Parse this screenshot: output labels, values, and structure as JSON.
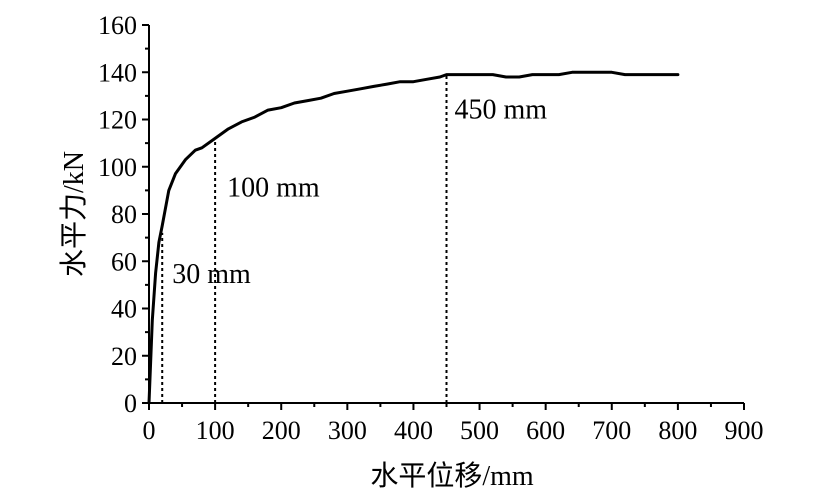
{
  "chart_data": {
    "type": "line",
    "xlabel": "水平位移/mm",
    "ylabel": "水平力/kN",
    "xlim": [
      0,
      900
    ],
    "ylim": [
      0,
      160
    ],
    "xticks": [
      0,
      100,
      200,
      300,
      400,
      500,
      600,
      700,
      800,
      900
    ],
    "yticks": [
      0,
      20,
      40,
      60,
      80,
      100,
      120,
      140,
      160
    ],
    "grid": false,
    "series": [
      {
        "x": [
          0,
          5,
          10,
          15,
          20,
          30,
          40,
          55,
          70,
          80,
          100,
          120,
          140,
          160,
          180,
          200,
          220,
          240,
          260,
          280,
          300,
          320,
          340,
          360,
          380,
          400,
          420,
          440,
          450,
          470,
          500,
          520,
          540,
          560,
          580,
          600,
          620,
          640,
          660,
          680,
          700,
          720,
          740,
          760,
          780,
          800
        ],
        "y": [
          0,
          35,
          55,
          68,
          75,
          90,
          97,
          103,
          107,
          108,
          112,
          116,
          119,
          121,
          124,
          125,
          127,
          128,
          129,
          131,
          132,
          133,
          134,
          135,
          136,
          136,
          137,
          138,
          139,
          139,
          139,
          139,
          138,
          138,
          139,
          139,
          139,
          140,
          140,
          140,
          140,
          139,
          139,
          139,
          139,
          139
        ]
      }
    ],
    "annotations": [
      {
        "x": 20,
        "y": 72,
        "label": "30 mm"
      },
      {
        "x": 100,
        "y": 112,
        "label": "100 mm"
      },
      {
        "x": 450,
        "y": 139,
        "label": "450 mm"
      }
    ]
  }
}
